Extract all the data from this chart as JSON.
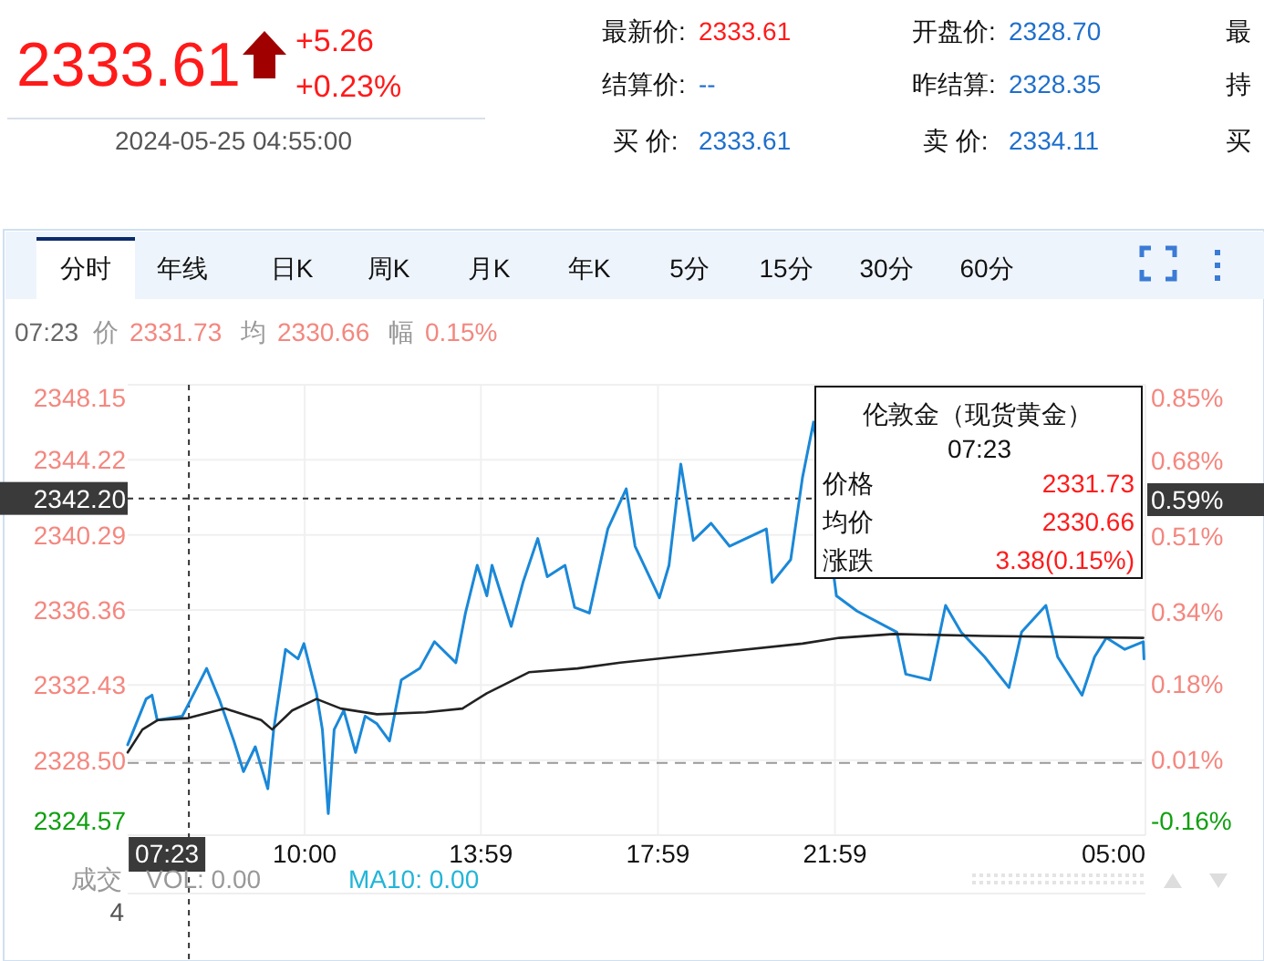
{
  "chart_data": {
    "type": "line",
    "xlim": [
      "2024-05-24T06:00",
      "2024-05-25T05:00"
    ],
    "xticks": [
      {
        "value": "2024-05-24T10:00",
        "label": "10:00"
      },
      {
        "value": "2024-05-24T13:59",
        "label": "13:59"
      },
      {
        "value": "2024-05-24T17:59",
        "label": "17:59"
      },
      {
        "value": "2024-05-24T21:59",
        "label": "21:59"
      },
      {
        "value": "2024-05-25T05:00",
        "label": "05:00"
      }
    ],
    "ylim": [
      2324.57,
      2348.15
    ],
    "yticks": [
      2348.15,
      2344.22,
      2340.29,
      2336.36,
      2332.43,
      {
        "value": 2328.5,
        "label": "2328.50"
      },
      2324.57
    ],
    "y2lim": [
      -0.16,
      0.85
    ],
    "y2ticks": [
      {
        "value": 0.85,
        "label": "0.85%"
      },
      {
        "value": 0.68,
        "label": "0.68%"
      },
      {
        "value": 0.51,
        "label": "0.51%"
      },
      {
        "value": 0.34,
        "label": "0.34%"
      },
      {
        "value": 0.18,
        "label": "0.18%"
      },
      {
        "value": 0.01,
        "label": "0.01%"
      },
      {
        "value": -0.16,
        "label": "-0.16%"
      }
    ],
    "grid": true,
    "series": [
      {
        "color": "#1a88d8",
        "x": [
          "2024-05-24T06:00",
          "2024-05-24T06:25",
          "2024-05-24T06:33",
          "2024-05-24T06:40",
          "2024-05-24T07:14",
          "2024-05-24T07:26",
          "2024-05-24T07:47",
          "2024-05-24T08:04",
          "2024-05-24T08:24",
          "2024-05-24T08:37",
          "2024-05-24T08:53",
          "2024-05-24T09:10",
          "2024-05-24T09:18",
          "2024-05-24T09:34",
          "2024-05-24T09:51",
          "2024-05-24T09:59",
          "2024-05-24T10:16",
          "2024-05-24T10:24",
          "2024-05-24T10:32",
          "2024-05-24T10:40",
          "2024-05-24T10:53",
          "2024-05-24T11:09",
          "2024-05-24T11:22",
          "2024-05-24T11:38",
          "2024-05-24T11:55",
          "2024-05-24T12:11",
          "2024-05-24T12:36",
          "2024-05-24T12:56",
          "2024-05-24T13:25",
          "2024-05-24T13:38",
          "2024-05-24T13:54",
          "2024-05-24T14:07",
          "2024-05-24T14:14",
          "2024-05-24T14:40",
          "2024-05-24T14:56",
          "2024-05-24T15:16",
          "2024-05-24T15:29",
          "2024-05-24T15:53",
          "2024-05-24T16:06",
          "2024-05-24T16:26",
          "2024-05-24T16:51",
          "2024-05-24T17:16",
          "2024-05-24T17:28",
          "2024-05-24T18:01",
          "2024-05-24T18:14",
          "2024-05-24T18:30",
          "2024-05-24T18:47",
          "2024-05-24T19:11",
          "2024-05-24T19:36",
          "2024-05-24T20:26",
          "2024-05-24T20:34",
          "2024-05-24T20:59",
          "2024-05-24T21:15",
          "2024-05-24T21:30",
          "2024-05-24T22:01",
          "2024-05-24T22:29",
          "2024-05-24T23:23",
          "2024-05-24T23:35",
          "2024-05-25T00:08",
          "2024-05-25T00:29",
          "2024-05-25T00:50",
          "2024-05-25T01:22",
          "2024-05-25T01:55",
          "2024-05-25T02:12",
          "2024-05-25T02:45",
          "2024-05-25T03:01",
          "2024-05-25T03:34",
          "2024-05-25T03:51",
          "2024-05-25T04:07",
          "2024-05-25T04:32",
          "2024-05-25T04:57",
          "2024-05-25T04:58"
        ],
        "values": [
          2329.3,
          2331.7,
          2331.9,
          2330.6,
          2330.8,
          2331.7,
          2333.3,
          2331.7,
          2329.5,
          2327.9,
          2329.2,
          2327.0,
          2330.1,
          2334.3,
          2333.8,
          2334.6,
          2332.0,
          2330.1,
          2325.7,
          2330.1,
          2331.1,
          2328.9,
          2330.8,
          2330.4,
          2329.5,
          2332.7,
          2333.3,
          2334.7,
          2333.6,
          2336.2,
          2338.7,
          2337.1,
          2338.7,
          2335.5,
          2337.8,
          2340.1,
          2338.1,
          2338.7,
          2336.5,
          2336.2,
          2340.6,
          2342.7,
          2339.7,
          2337.0,
          2338.7,
          2344.0,
          2340.0,
          2340.9,
          2339.7,
          2340.6,
          2337.8,
          2339.0,
          2343.3,
          2346.2,
          2337.1,
          2336.3,
          2335.2,
          2333.0,
          2332.7,
          2336.6,
          2335.2,
          2333.9,
          2332.3,
          2335.2,
          2336.6,
          2333.9,
          2331.9,
          2333.9,
          2334.9,
          2334.3,
          2334.7,
          2333.8
        ]
      },
      {
        "color": "#222222",
        "x": [
          "2024-05-24T06:00",
          "2024-05-24T06:20",
          "2024-05-24T06:41",
          "2024-05-24T07:22",
          "2024-05-24T08:12",
          "2024-05-24T09:01",
          "2024-05-24T09:16",
          "2024-05-24T09:43",
          "2024-05-24T10:16",
          "2024-05-24T10:49",
          "2024-05-24T11:38",
          "2024-05-24T12:44",
          "2024-05-24T13:34",
          "2024-05-24T14:07",
          "2024-05-24T15:04",
          "2024-05-24T16:10",
          "2024-05-24T17:08",
          "2024-05-24T21:15",
          "2024-05-24T22:05",
          "2024-05-24T23:19",
          "2024-05-25T01:22",
          "2024-05-25T04:57"
        ],
        "values": [
          2328.9,
          2330.1,
          2330.6,
          2330.7,
          2331.2,
          2330.6,
          2330.1,
          2331.1,
          2331.7,
          2331.2,
          2330.9,
          2331.0,
          2331.2,
          2332.0,
          2333.1,
          2333.3,
          2333.6,
          2334.6,
          2334.9,
          2335.1,
          2335.0,
          2334.9
        ]
      }
    ],
    "ref_lines": [
      {
        "axis": "y",
        "value": 2328.35,
        "color": "#999999",
        "line_style": "dashed"
      },
      {
        "axis": "x",
        "value": "2024-05-24T07:23",
        "label": "07:23",
        "color": "#333333",
        "line_style": "dotted"
      },
      {
        "axis": "y",
        "value": 2342.2,
        "label": "2342.20",
        "color": "#333333",
        "line_style": "dotted"
      }
    ],
    "annotations": [
      "2333.61",
      "+5.26",
      "+0.23%",
      "2024-05-25 04:55:00",
      "最新价:",
      "2333.61",
      "开盘价:",
      "2328.70",
      "最",
      "结算价:",
      "--",
      "昨结算:",
      "2328.35",
      "持",
      "买 价:",
      "2333.61",
      "卖 价:",
      "2334.11",
      "买",
      "分时",
      "年线",
      "日K",
      "周K",
      "月K",
      "年K",
      "5分",
      "15分",
      "30分",
      "60分",
      "07:23",
      "价",
      "2331.73",
      "均",
      "2330.66",
      "幅",
      "0.15%",
      "伦敦金（现货黄金）",
      "07:23",
      "价格",
      "2331.73",
      "均价",
      "2330.66",
      "涨跌",
      "3.38(0.15%)",
      "成交",
      "VOL: 0.00",
      "MA10: 0.00",
      "4",
      "0.59%"
    ]
  }
}
